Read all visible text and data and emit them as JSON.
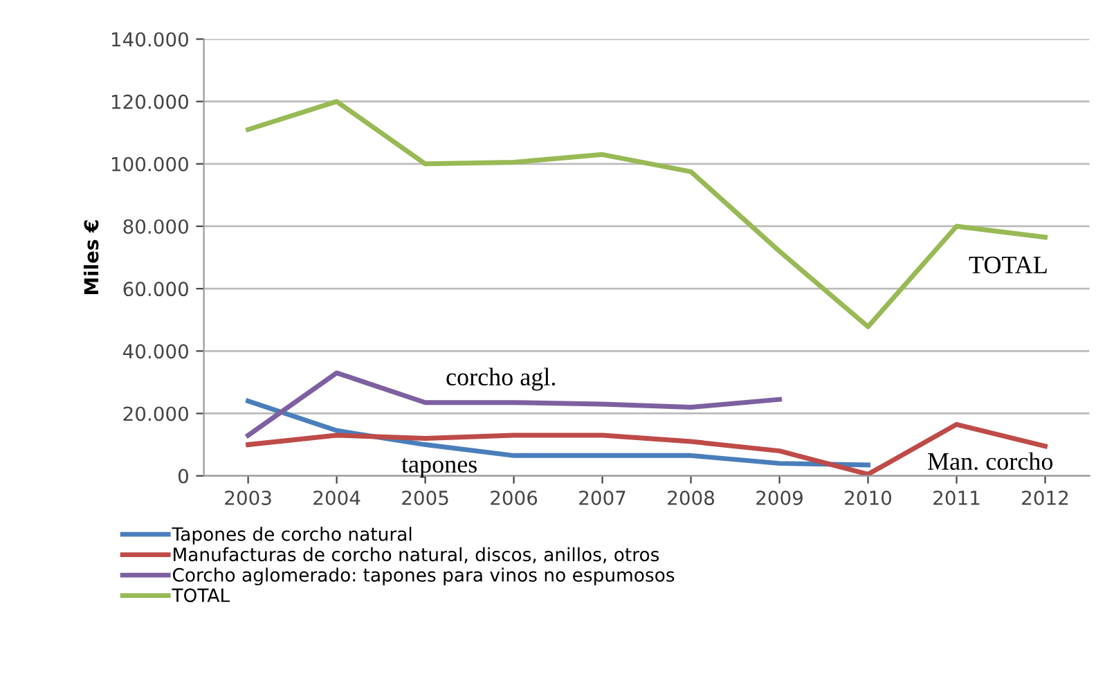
{
  "chart_data": {
    "type": "line",
    "ylabel": "Miles €",
    "categories": [
      "2003",
      "2004",
      "2005",
      "2006",
      "2007",
      "2008",
      "2009",
      "2010",
      "2011",
      "2012"
    ],
    "series": [
      {
        "name": "Tapones de corcho natural",
        "color": "#4a7ebb",
        "values": [
          24000,
          14500,
          10000,
          6500,
          6500,
          6500,
          4000,
          3500,
          null,
          null
        ]
      },
      {
        "name": "Manufacturas de corcho natural, discos, anillos, otros",
        "color": "#be4b48",
        "values": [
          10000,
          13000,
          12000,
          13000,
          13000,
          11000,
          8000,
          500,
          16500,
          9500
        ]
      },
      {
        "name": "Corcho aglomerado: tapones para vinos no espumosos",
        "color": "#7d60a0",
        "values": [
          13000,
          33000,
          23500,
          23500,
          23000,
          22000,
          24500,
          null,
          null,
          null
        ]
      },
      {
        "name": "TOTAL",
        "color": "#98b954",
        "values": [
          111000,
          120000,
          100000,
          100500,
          103000,
          97500,
          72000,
          47800,
          80000,
          76500
        ]
      }
    ],
    "ylim": [
      0,
      140000
    ],
    "yticks": [
      {
        "value": 0,
        "label": "0"
      },
      {
        "value": 20000,
        "label": "20.000"
      },
      {
        "value": 40000,
        "label": "40.000"
      },
      {
        "value": 60000,
        "label": "60.000"
      },
      {
        "value": 80000,
        "label": "80.000"
      },
      {
        "value": 100000,
        "label": "100.000"
      },
      {
        "value": 120000,
        "label": "120.000"
      },
      {
        "value": 140000,
        "label": "140.000"
      }
    ],
    "grid": "y",
    "legend": "bottom",
    "marker": "none",
    "line_style": "solid",
    "annotations": [
      "corcho agl.",
      "tapones",
      "TOTAL",
      "Man. corcho"
    ]
  }
}
